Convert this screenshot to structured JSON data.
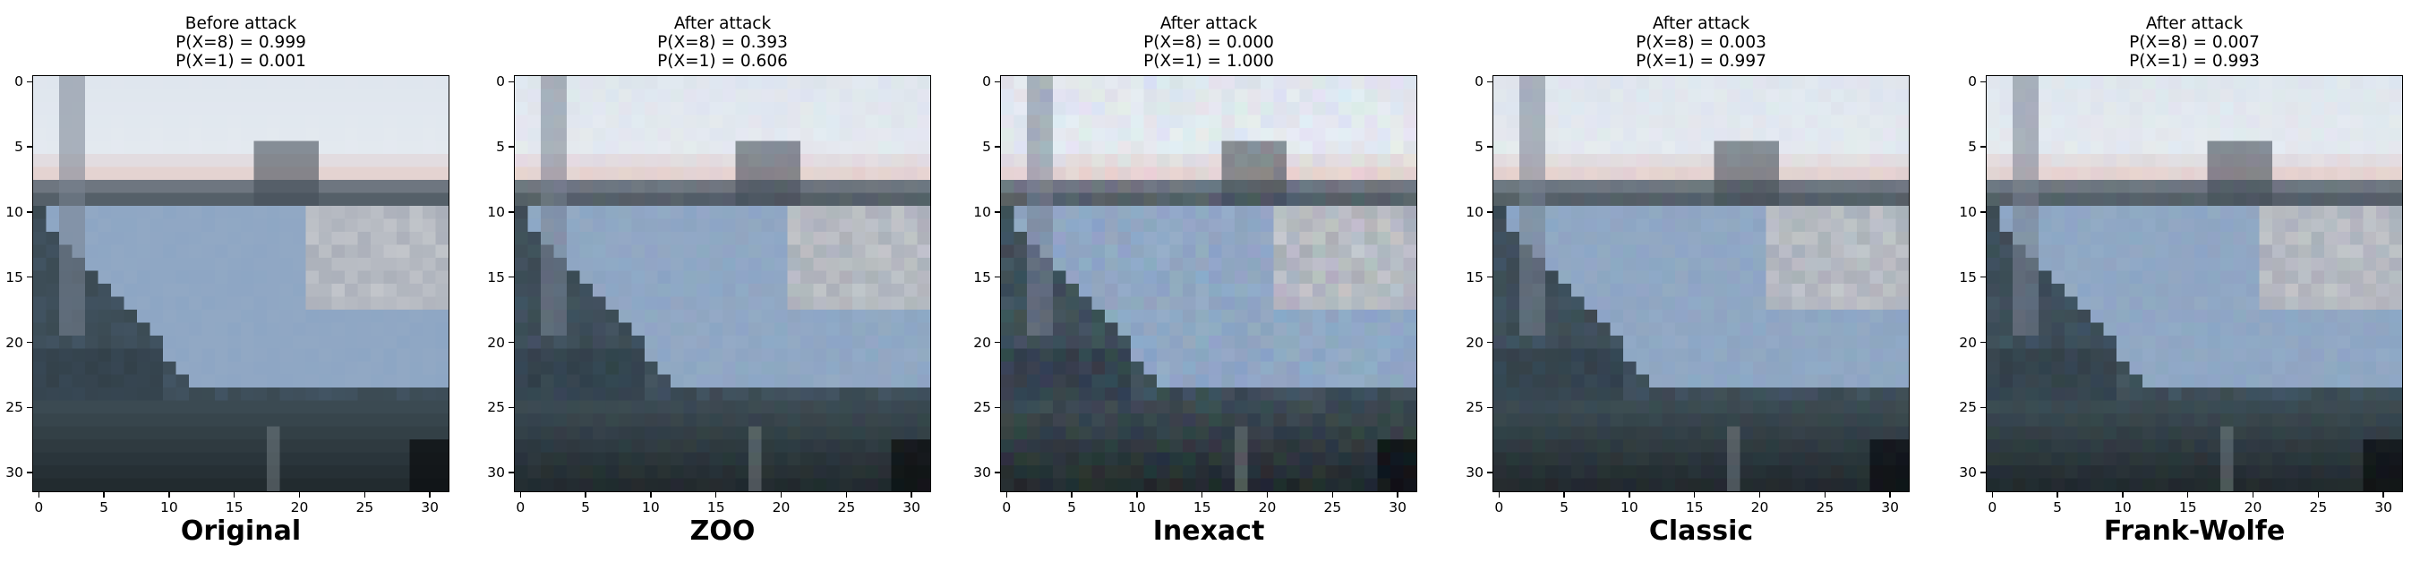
{
  "figure": {
    "panels": [
      {
        "title": [
          "Before attack",
          "P(X=8) = 0.999",
          "P(X=1) = 0.001"
        ],
        "caption": "Original",
        "noise": 0
      },
      {
        "title": [
          "After attack",
          "P(X=8) = 0.393",
          "P(X=1) = 0.606"
        ],
        "caption": "ZOO",
        "noise": 1
      },
      {
        "title": [
          "After attack",
          "P(X=8) = 0.000",
          "P(X=1) = 1.000"
        ],
        "caption": "Inexact",
        "noise": 2
      },
      {
        "title": [
          "After attack",
          "P(X=8) = 0.003",
          "P(X=1) = 0.997"
        ],
        "caption": "Classic",
        "noise": 1
      },
      {
        "title": [
          "After attack",
          "P(X=8) = 0.007",
          "P(X=1) = 0.993"
        ],
        "caption": "Frank-Wolfe",
        "noise": 1
      }
    ],
    "axis_ticks": {
      "x": [
        "0",
        "5",
        "10",
        "15",
        "20",
        "25",
        "30"
      ],
      "y": [
        "0",
        "5",
        "10",
        "15",
        "20",
        "25",
        "30"
      ]
    },
    "image_grid_size": 32,
    "colors": {
      "sky": "#dfe6ee",
      "horizon_pink": "#e7c9c3",
      "water_dark": "#3b4a52",
      "deck_blue": "#8da6c4",
      "shadow": "#1c2326"
    }
  }
}
